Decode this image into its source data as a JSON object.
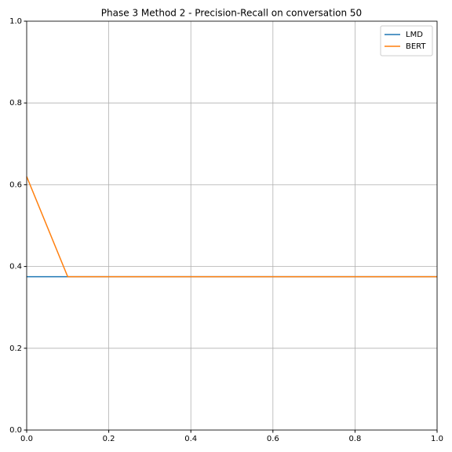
{
  "chart_data": {
    "type": "line",
    "title": "Phase 3 Method 2 - Precision-Recall on conversation 50",
    "x": [
      0,
      0.1,
      1
    ],
    "series": [
      {
        "name": "LMD",
        "color": "#1f77b4",
        "values": [
          0.375,
          0.375,
          0.375
        ]
      },
      {
        "name": "BERT",
        "color": "#ff7f0e",
        "values": [
          0.62,
          0.375,
          0.375
        ]
      }
    ],
    "xlim": [
      0,
      1
    ],
    "ylim": [
      0,
      1
    ],
    "xticks": [
      {
        "value": 0,
        "label": "0.0"
      },
      0.2,
      0.4,
      0.6,
      0.8,
      {
        "value": 1,
        "label": "1.0"
      }
    ],
    "yticks": [
      {
        "value": 0,
        "label": "0.0"
      },
      0.2,
      0.4,
      0.6,
      0.8,
      {
        "value": 1,
        "label": "1.0"
      }
    ],
    "grid": true,
    "legend": "upper-right"
  }
}
